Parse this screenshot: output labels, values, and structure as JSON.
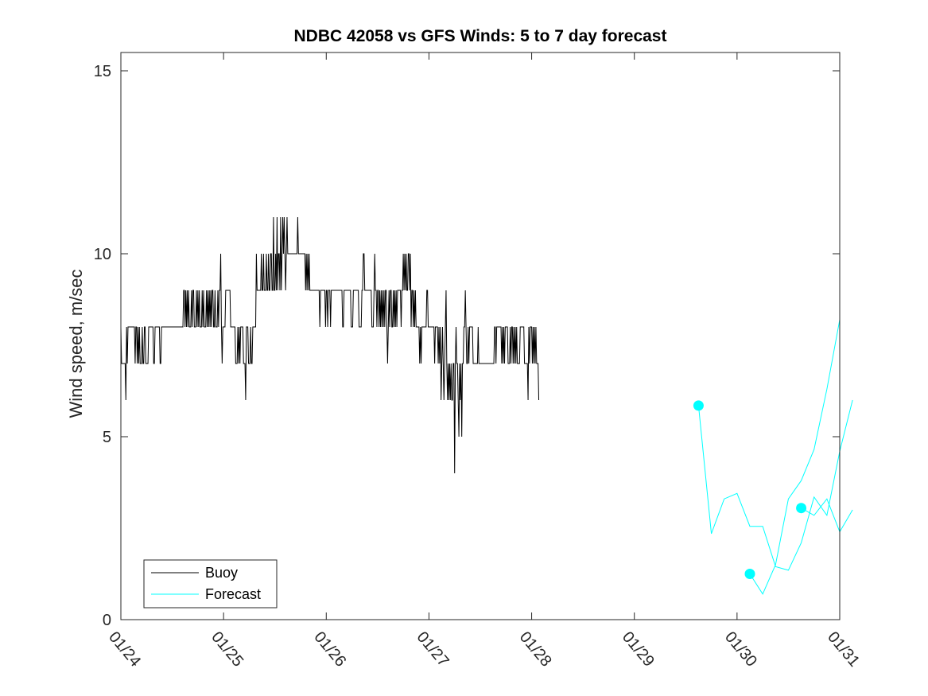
{
  "chart_data": {
    "type": "line",
    "title": "NDBC 42058 vs GFS Winds: 5 to 7 day forecast",
    "xlabel": "",
    "ylabel": "Wind speed, m/sec",
    "xlim": [
      0,
      7
    ],
    "ylim": [
      0,
      15.5
    ],
    "x_tick_values": [
      0,
      1,
      2,
      3,
      4,
      5,
      6,
      7
    ],
    "x_tick_labels": [
      "01/24",
      "01/25",
      "01/26",
      "01/27",
      "01/28",
      "01/29",
      "01/30",
      "01/31"
    ],
    "y_tick_values": [
      0,
      5,
      10,
      15
    ],
    "y_tick_labels": [
      "0",
      "5",
      "10",
      "15"
    ],
    "legend": {
      "position": "bottom-left",
      "entries": [
        "Buoy",
        "Forecast"
      ]
    },
    "colors": {
      "buoy": "#000000",
      "forecast": "#00ffff"
    },
    "series": [
      {
        "name": "Buoy",
        "x_start": 0,
        "x_step": 0.0069444,
        "values": [
          8,
          7,
          7,
          7,
          7,
          7,
          7,
          6,
          8,
          7,
          8,
          8,
          8,
          8,
          8,
          8,
          8,
          8,
          8,
          8,
          7,
          8,
          8,
          7,
          8,
          7,
          8,
          7,
          7,
          7,
          8,
          7,
          7,
          8,
          8,
          7,
          7,
          7,
          7,
          8,
          8,
          8,
          8,
          8,
          8,
          8,
          7,
          7,
          8,
          8,
          8,
          8,
          8,
          8,
          8,
          7,
          7,
          8,
          8,
          8,
          8,
          8,
          8,
          8,
          8,
          8,
          8,
          8,
          8,
          8,
          8,
          8,
          8,
          8,
          8,
          8,
          8,
          8,
          8,
          8,
          8,
          8,
          8,
          8,
          8,
          8,
          8,
          8,
          9,
          9,
          8,
          9,
          8,
          9,
          8,
          9,
          8,
          8,
          8,
          9,
          8,
          9,
          9,
          8,
          8,
          8,
          9,
          8,
          9,
          8,
          9,
          8,
          8,
          8,
          9,
          8,
          9,
          8,
          8,
          8,
          9,
          8,
          9,
          8,
          9,
          8,
          9,
          8,
          9,
          9,
          8,
          8,
          9,
          8,
          8,
          8,
          9,
          8,
          9,
          9,
          10,
          8,
          7,
          8,
          8,
          8,
          8,
          9,
          9,
          9,
          9,
          9,
          9,
          9,
          8,
          8,
          8,
          8,
          8,
          8,
          8,
          7,
          7,
          7,
          8,
          7,
          8,
          7,
          8,
          8,
          8,
          8,
          7,
          7,
          7,
          6,
          8,
          8,
          8,
          7,
          7,
          7,
          8,
          7,
          7,
          8,
          8,
          8,
          8,
          8,
          10,
          9,
          9,
          9,
          9,
          9,
          9,
          10,
          9,
          9,
          10,
          9,
          9,
          9,
          10,
          9,
          9,
          10,
          9,
          9,
          10,
          10,
          9,
          9,
          11,
          9,
          9,
          10,
          9,
          11,
          9,
          10,
          10,
          9,
          11,
          9,
          10,
          11,
          10,
          11,
          10,
          9,
          10,
          11,
          10,
          10,
          10,
          10,
          10,
          10,
          10,
          10,
          10,
          10,
          10,
          10,
          10,
          10,
          11,
          10,
          10,
          10,
          10,
          10,
          10,
          10,
          10,
          10,
          10,
          9,
          10,
          9,
          10,
          9,
          10,
          9,
          9,
          9,
          9,
          9,
          9,
          9,
          9,
          9,
          9,
          9,
          9,
          9,
          9,
          8,
          9,
          9,
          9,
          9,
          9,
          9,
          9,
          8,
          9,
          9,
          8,
          9,
          9,
          9,
          8,
          9,
          9,
          9,
          9,
          9,
          9,
          9,
          9,
          9,
          9,
          9,
          9,
          9,
          9,
          9,
          9,
          8,
          8,
          9,
          9,
          9,
          9,
          9,
          9,
          9,
          9,
          9,
          9,
          8,
          8,
          8,
          9,
          9,
          9,
          9,
          9,
          9,
          9,
          9,
          8,
          8,
          8,
          8,
          9,
          9,
          10,
          10,
          9,
          9,
          9,
          9,
          9,
          9,
          9,
          9,
          9,
          9,
          8,
          8,
          8,
          9,
          10,
          9,
          9,
          8,
          9,
          9,
          8,
          9,
          8,
          9,
          8,
          9,
          8,
          9,
          8,
          9,
          9,
          8,
          7,
          8,
          9,
          8,
          9,
          9,
          8,
          8,
          9,
          8,
          9,
          8,
          9,
          8,
          9,
          9,
          9,
          9,
          9,
          8,
          9,
          9,
          10,
          9,
          10,
          9,
          10,
          9,
          9,
          10,
          10,
          9,
          10,
          8,
          9,
          9,
          8,
          9,
          8,
          9,
          8,
          8,
          8,
          8,
          8,
          7,
          8,
          7,
          8,
          8,
          8,
          8,
          8,
          8,
          8,
          9,
          9,
          8,
          8,
          8,
          8,
          8,
          8,
          8,
          8,
          8,
          7,
          8,
          8,
          8,
          8,
          7,
          8,
          7,
          8,
          6,
          7,
          8,
          7,
          6,
          7,
          8,
          9,
          7,
          6,
          7,
          6,
          7,
          6,
          7,
          6,
          6,
          7,
          7,
          4,
          7,
          8,
          7,
          7,
          6,
          5,
          7,
          6,
          7,
          5,
          7,
          7,
          8,
          8,
          9,
          8,
          7,
          7,
          8,
          7,
          8,
          8,
          8,
          8,
          8,
          7,
          7,
          7,
          7,
          7,
          7,
          7,
          8,
          7,
          7,
          7,
          7,
          7,
          7,
          7,
          7,
          7,
          7,
          7,
          7,
          7,
          7,
          7,
          7,
          7,
          7,
          7,
          7,
          7,
          7,
          8,
          8,
          7,
          8,
          8,
          8,
          8,
          8,
          8,
          8,
          7,
          8,
          7,
          8,
          7,
          8,
          8,
          8,
          8,
          7,
          7,
          7,
          8,
          7,
          8,
          8,
          7,
          8,
          7,
          8,
          7,
          8,
          7,
          7,
          7,
          7,
          8,
          8,
          8,
          8,
          8,
          8,
          7,
          7,
          7,
          7,
          7,
          6,
          8,
          7,
          8,
          8,
          8,
          7,
          8,
          7,
          8,
          7,
          8,
          7,
          7,
          7,
          6
        ]
      },
      {
        "name": "Forecast",
        "x_start": 5.625,
        "x_step": 0.125,
        "values": [
          5.85,
          2.35,
          3.3,
          3.45,
          2.55,
          2.55,
          1.45,
          1.35,
          2.1,
          3.35,
          2.85,
          4.6,
          6.0
        ]
      },
      {
        "name": "Forecast",
        "x_start": 6.125,
        "x_step": 0.125,
        "values": [
          1.25,
          0.7,
          1.5,
          3.3,
          3.8,
          4.65,
          6.3,
          8.2
        ]
      },
      {
        "name": "Forecast",
        "x_start": 6.625,
        "x_step": 0.125,
        "values": [
          3.05,
          2.85,
          3.3,
          2.4,
          3.0
        ]
      }
    ]
  }
}
